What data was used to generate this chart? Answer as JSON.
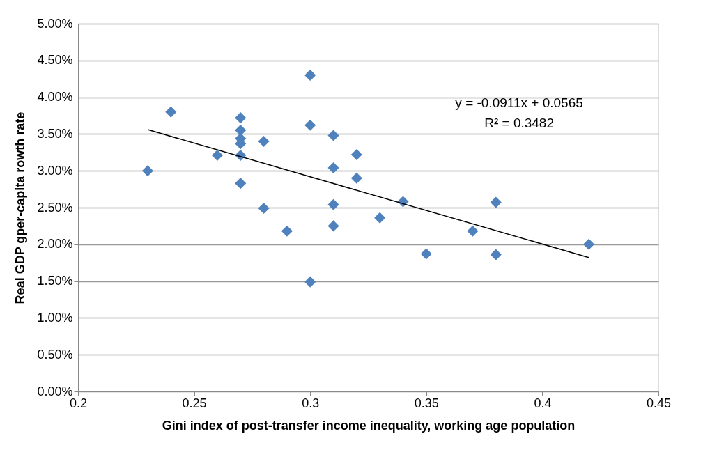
{
  "chart_data": {
    "type": "scatter",
    "xlabel": "Gini index of post-transfer income inequality, working age population",
    "ylabel": "Real GDP gper-capita rowth rate",
    "xlim": [
      0.2,
      0.45
    ],
    "xticks": [
      0.2,
      0.25,
      0.3,
      0.35,
      0.4,
      0.45
    ],
    "ylim": [
      0,
      0.05
    ],
    "yticks": [
      {
        "value": 0,
        "label": "0.00%"
      },
      {
        "value": 0.005,
        "label": "0.50%"
      },
      {
        "value": 0.01,
        "label": "1.00%"
      },
      {
        "value": 0.015,
        "label": "1.50%"
      },
      {
        "value": 0.02,
        "label": "2.00%"
      },
      {
        "value": 0.025,
        "label": "2.50%"
      },
      {
        "value": 0.03,
        "label": "3.00%"
      },
      {
        "value": 0.035,
        "label": "3.50%"
      },
      {
        "value": 0.04,
        "label": "4.00%"
      },
      {
        "value": 0.045,
        "label": "4.50%"
      },
      {
        "value": 0.05,
        "label": "5.00%"
      }
    ],
    "grid": "y",
    "marker": "diamond",
    "annotations": [
      "y = -0.0911x + 0.0565",
      "R² = 0.3482"
    ],
    "series": [
      {
        "color": "#4f81bd",
        "x": [
          0.23,
          0.24,
          0.26,
          0.27,
          0.27,
          0.27,
          0.27,
          0.27,
          0.27,
          0.28,
          0.28,
          0.29,
          0.3,
          0.3,
          0.3,
          0.31,
          0.31,
          0.31,
          0.31,
          0.32,
          0.32,
          0.33,
          0.34,
          0.35,
          0.37,
          0.38,
          0.38,
          0.42
        ],
        "values": [
          0.03,
          0.038,
          0.0321,
          0.0372,
          0.0355,
          0.0344,
          0.0337,
          0.0321,
          0.0283,
          0.034,
          0.0249,
          0.0218,
          0.043,
          0.0362,
          0.0149,
          0.0348,
          0.0304,
          0.0254,
          0.0225,
          0.0322,
          0.029,
          0.0236,
          0.0258,
          0.0187,
          0.0218,
          0.0257,
          0.0186,
          0.02
        ]
      },
      {
        "type": "line",
        "marker": "none",
        "line_style": "solid",
        "color": "#000000",
        "x": [
          0.23,
          0.42
        ],
        "values": [
          0.0356,
          0.0182
        ]
      }
    ]
  }
}
